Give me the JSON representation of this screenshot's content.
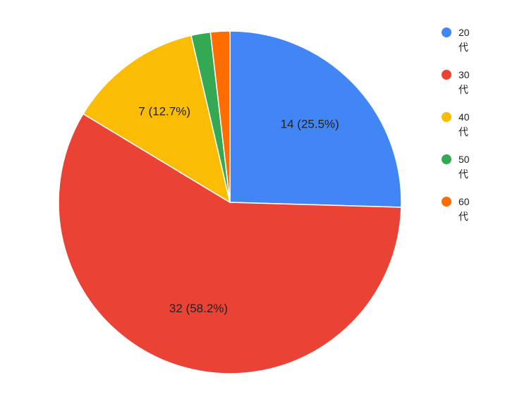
{
  "chart_data": {
    "type": "pie",
    "categories": [
      "20代",
      "30代",
      "40代",
      "50代",
      "60代"
    ],
    "values": [
      14,
      32,
      7,
      1,
      1
    ],
    "value_labels": [
      "14 (25.5%)",
      "32 (58.2%)",
      "7 (12.7%)",
      null,
      null
    ],
    "colors": [
      "#4285f4",
      "#ea4335",
      "#fbbc04",
      "#34a853",
      "#ff6d01"
    ],
    "legend": "right"
  }
}
